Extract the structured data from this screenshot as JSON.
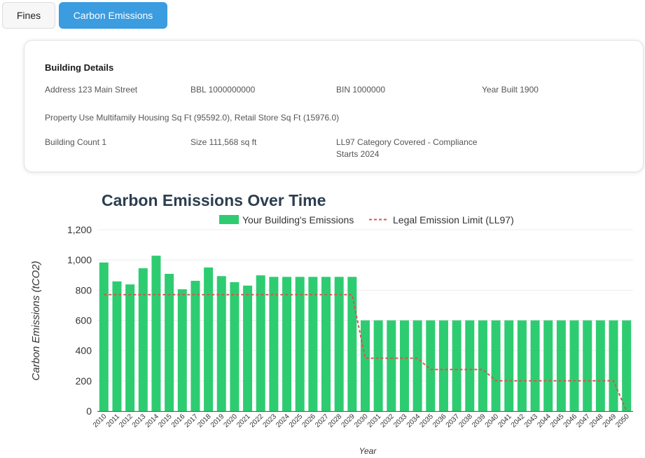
{
  "tabs": [
    {
      "label": "Fines",
      "active": false
    },
    {
      "label": "Carbon Emissions",
      "active": true
    }
  ],
  "building": {
    "heading": "Building Details",
    "address": "Address 123 Main Street",
    "bbl": "BBL 1000000000",
    "bin": "BIN 1000000",
    "year_built": "Year Built 1900",
    "property_use": "Property Use Multifamily Housing Sq Ft (95592.0), Retail Store Sq Ft (15976.0)",
    "building_count": "Building Count 1",
    "size": "Size 111,568 sq ft",
    "ll97_category_line1": "LL97 Category Covered - Compliance",
    "ll97_category_line2": "Starts 2024"
  },
  "colors": {
    "emissions_bar": "#2ecc71",
    "limit_line": "#d9534f",
    "active_tab": "#3b9ce0",
    "title": "#2c3e50"
  },
  "chart_data": {
    "type": "bar",
    "title": "Carbon Emissions Over Time",
    "xlabel": "Year",
    "ylabel": "Carbon Emissions (tCO2)",
    "ylim": [
      0,
      1200
    ],
    "yticks": [
      "0",
      "200",
      "400",
      "600",
      "800",
      "1,000",
      "1,200"
    ],
    "legend_position": "top",
    "categories": [
      "2010",
      "2011",
      "2012",
      "2013",
      "2014",
      "2015",
      "2016",
      "2017",
      "2018",
      "2019",
      "2020",
      "2021",
      "2022",
      "2023",
      "2024",
      "2025",
      "2026",
      "2027",
      "2028",
      "2029",
      "2030",
      "2031",
      "2032",
      "2033",
      "2034",
      "2035",
      "2036",
      "2037",
      "2038",
      "2039",
      "2040",
      "2041",
      "2042",
      "2043",
      "2044",
      "2045",
      "2046",
      "2047",
      "2048",
      "2049",
      "2050"
    ],
    "series": [
      {
        "name": "Your Building's Emissions",
        "type": "bar",
        "values": [
          983,
          858,
          838,
          945,
          1028,
          908,
          806,
          862,
          950,
          893,
          853,
          830,
          898,
          888,
          888,
          888,
          888,
          888,
          888,
          888,
          600,
          600,
          600,
          600,
          600,
          600,
          600,
          600,
          600,
          600,
          600,
          600,
          600,
          600,
          600,
          600,
          600,
          600,
          600,
          600,
          600
        ]
      },
      {
        "name": "Legal Emission Limit (LL97)",
        "type": "line-dashed",
        "values": [
          770,
          770,
          770,
          770,
          770,
          770,
          770,
          770,
          770,
          770,
          770,
          770,
          770,
          770,
          770,
          770,
          770,
          770,
          770,
          770,
          350,
          350,
          350,
          350,
          350,
          275,
          275,
          275,
          275,
          275,
          200,
          200,
          200,
          200,
          200,
          200,
          200,
          200,
          200,
          200,
          0
        ]
      }
    ]
  }
}
